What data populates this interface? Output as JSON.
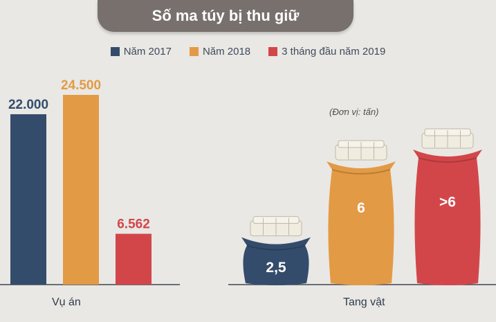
{
  "title": "Số ma túy bị thu giữ",
  "colors": {
    "s2017": "#344c6c",
    "s2018": "#e39a45",
    "s2019": "#d2464a",
    "bag": "#f0ece0",
    "bag_line": "#bdb7a7"
  },
  "legend": [
    {
      "label": "Năm 2017",
      "color_key": "s2017"
    },
    {
      "label": "Năm 2018",
      "color_key": "s2018"
    },
    {
      "label": "3 tháng đầu năm 2019",
      "color_key": "s2019"
    }
  ],
  "unit_note": "(Đơn vị: tấn)",
  "chart_data": [
    {
      "type": "bar",
      "xlabel": "Vụ án",
      "series": [
        {
          "name": "Năm 2017",
          "values": [
            22000
          ],
          "label": "22.000",
          "color_key": "s2017"
        },
        {
          "name": "Năm 2018",
          "values": [
            24500
          ],
          "label": "24.500",
          "color_key": "s2018"
        },
        {
          "name": "3 tháng đầu năm 2019",
          "values": [
            6562
          ],
          "label": "6.562",
          "color_key": "s2019"
        }
      ]
    },
    {
      "type": "bar",
      "xlabel": "Tang vật",
      "series": [
        {
          "name": "Năm 2017",
          "values": [
            2.5
          ],
          "label": "2,5",
          "color_key": "s2017"
        },
        {
          "name": "Năm 2018",
          "values": [
            6
          ],
          "label": "6",
          "color_key": "s2018"
        },
        {
          "name": "3 tháng đầu năm 2019",
          "values": [
            6
          ],
          "label": ">6",
          "color_key": "s2019"
        }
      ]
    }
  ]
}
